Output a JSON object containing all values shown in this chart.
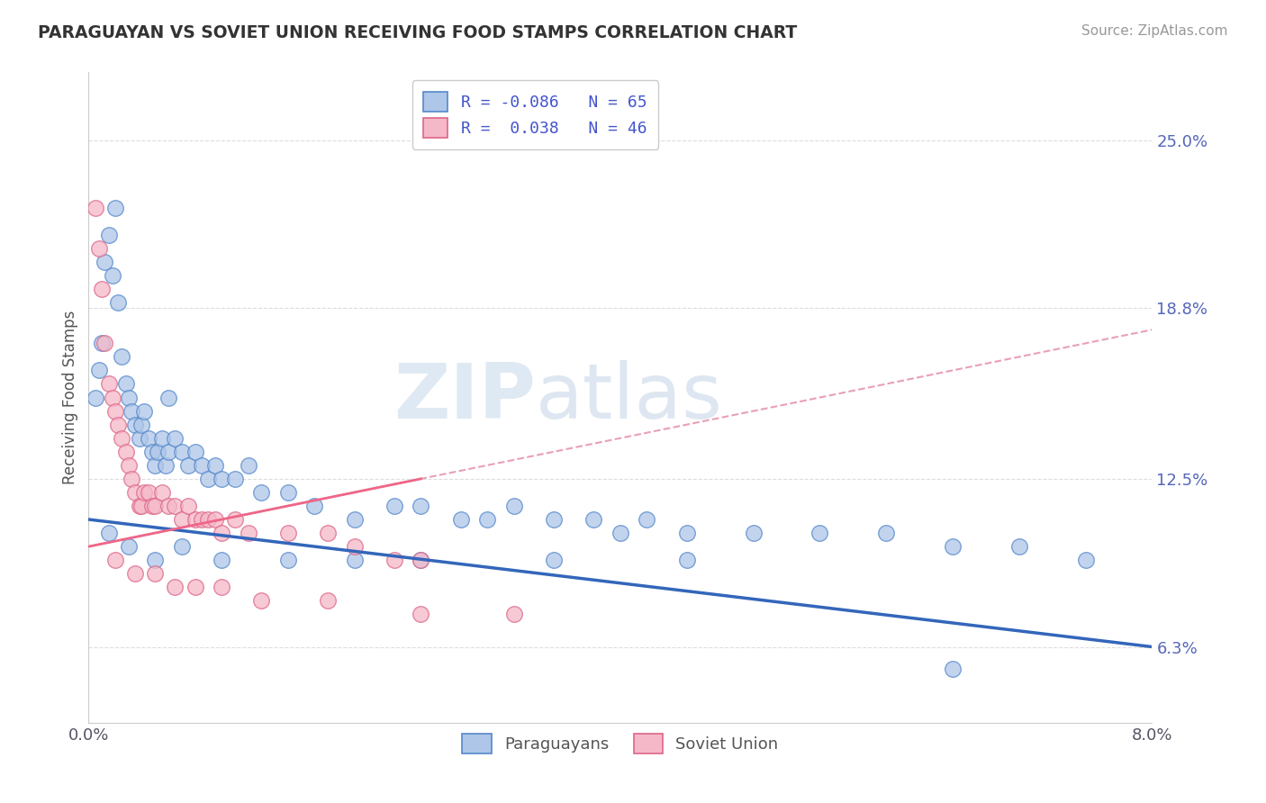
{
  "title": "PARAGUAYAN VS SOVIET UNION RECEIVING FOOD STAMPS CORRELATION CHART",
  "source": "Source: ZipAtlas.com",
  "ylabel": "Receiving Food Stamps",
  "yticks": [
    "6.3%",
    "12.5%",
    "18.8%",
    "25.0%"
  ],
  "ytick_values": [
    6.3,
    12.5,
    18.8,
    25.0
  ],
  "xmin": 0.0,
  "xmax": 8.0,
  "ymin": 3.5,
  "ymax": 27.5,
  "paraguayan_color": "#aec6e8",
  "soviet_color": "#f5b8c8",
  "paraguayan_edge": "#5588cc",
  "soviet_edge": "#dd6688",
  "trend_blue": "#3366bb",
  "trend_pink": "#ee6688",
  "trend_dashed_color": "#e8a0b8",
  "legend_line1": "R = -0.086   N = 65",
  "legend_line2": "R =  0.038   N = 46",
  "watermark_zip": "ZIP",
  "watermark_atlas": "atlas",
  "background_color": "#ffffff",
  "grid_color": "#dddddd",
  "paraguayan_x": [
    0.05,
    0.08,
    0.1,
    0.12,
    0.15,
    0.18,
    0.2,
    0.22,
    0.25,
    0.28,
    0.3,
    0.32,
    0.35,
    0.38,
    0.4,
    0.42,
    0.45,
    0.48,
    0.5,
    0.52,
    0.55,
    0.58,
    0.6,
    0.65,
    0.7,
    0.75,
    0.8,
    0.85,
    0.9,
    0.95,
    1.0,
    1.1,
    1.2,
    1.3,
    1.5,
    1.7,
    2.0,
    2.3,
    2.5,
    2.8,
    3.0,
    3.2,
    3.5,
    3.8,
    4.0,
    4.2,
    4.5,
    5.0,
    5.5,
    6.0,
    6.5,
    7.0,
    7.5,
    0.15,
    0.3,
    0.5,
    0.7,
    1.0,
    1.5,
    2.0,
    2.5,
    3.5,
    4.5,
    6.5,
    0.6
  ],
  "paraguayan_y": [
    15.5,
    16.5,
    17.5,
    20.5,
    21.5,
    20.0,
    22.5,
    19.0,
    17.0,
    16.0,
    15.5,
    15.0,
    14.5,
    14.0,
    14.5,
    15.0,
    14.0,
    13.5,
    13.0,
    13.5,
    14.0,
    13.0,
    13.5,
    14.0,
    13.5,
    13.0,
    13.5,
    13.0,
    12.5,
    13.0,
    12.5,
    12.5,
    13.0,
    12.0,
    12.0,
    11.5,
    11.0,
    11.5,
    11.5,
    11.0,
    11.0,
    11.5,
    11.0,
    11.0,
    10.5,
    11.0,
    10.5,
    10.5,
    10.5,
    10.5,
    10.0,
    10.0,
    9.5,
    10.5,
    10.0,
    9.5,
    10.0,
    9.5,
    9.5,
    9.5,
    9.5,
    9.5,
    9.5,
    5.5,
    15.5
  ],
  "soviet_x": [
    0.05,
    0.08,
    0.1,
    0.12,
    0.15,
    0.18,
    0.2,
    0.22,
    0.25,
    0.28,
    0.3,
    0.32,
    0.35,
    0.38,
    0.4,
    0.42,
    0.45,
    0.48,
    0.5,
    0.55,
    0.6,
    0.65,
    0.7,
    0.75,
    0.8,
    0.85,
    0.9,
    0.95,
    1.0,
    1.1,
    1.2,
    1.5,
    1.8,
    2.0,
    2.3,
    2.5,
    0.2,
    0.35,
    0.5,
    0.65,
    0.8,
    1.0,
    1.3,
    1.8,
    2.5,
    3.2
  ],
  "soviet_y": [
    22.5,
    21.0,
    19.5,
    17.5,
    16.0,
    15.5,
    15.0,
    14.5,
    14.0,
    13.5,
    13.0,
    12.5,
    12.0,
    11.5,
    11.5,
    12.0,
    12.0,
    11.5,
    11.5,
    12.0,
    11.5,
    11.5,
    11.0,
    11.5,
    11.0,
    11.0,
    11.0,
    11.0,
    10.5,
    11.0,
    10.5,
    10.5,
    10.5,
    10.0,
    9.5,
    9.5,
    9.5,
    9.0,
    9.0,
    8.5,
    8.5,
    8.5,
    8.0,
    8.0,
    7.5,
    7.5
  ]
}
